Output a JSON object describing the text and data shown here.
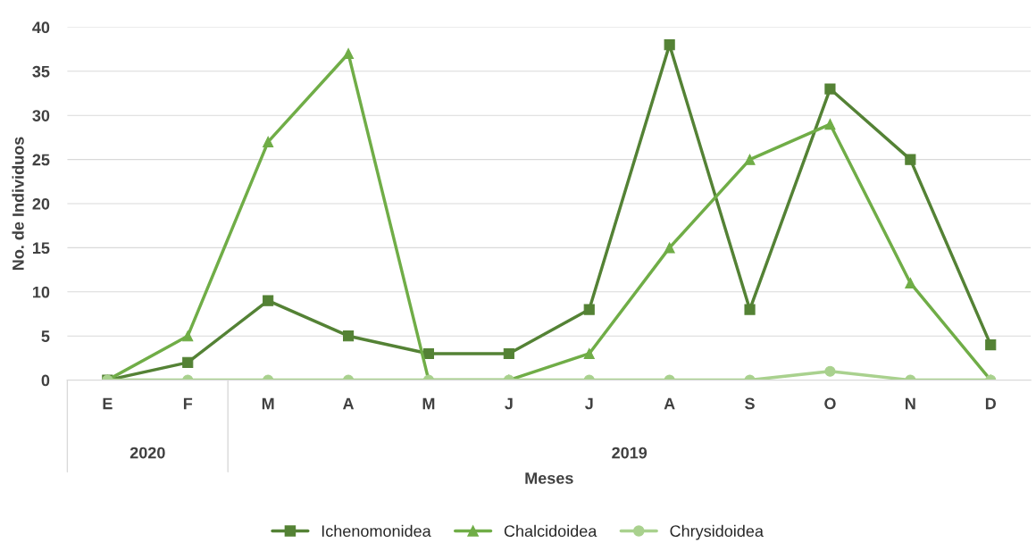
{
  "chart_data": {
    "type": "line",
    "xlabel": "Meses",
    "ylabel": "No. de Individuos",
    "categories": [
      "E",
      "F",
      "M",
      "A",
      "M",
      "J",
      "J",
      "A",
      "S",
      "O",
      "N",
      "D"
    ],
    "series": [
      {
        "name": "Ichenomonidea",
        "color": "#548235",
        "marker": "square",
        "values": [
          0,
          2,
          9,
          5,
          3,
          3,
          8,
          38,
          8,
          33,
          25,
          4
        ]
      },
      {
        "name": "Chalcidoidea",
        "color": "#70ad47",
        "marker": "triangle",
        "values": [
          0,
          5,
          27,
          37,
          0,
          0,
          3,
          15,
          25,
          29,
          11,
          0
        ]
      },
      {
        "name": "Chrysidoidea",
        "color": "#a9d18e",
        "marker": "circle",
        "values": [
          0,
          0,
          0,
          0,
          0,
          0,
          0,
          0,
          0,
          1,
          0,
          0
        ]
      }
    ],
    "ylim": [
      0,
      40
    ],
    "yticks": [
      0,
      5,
      10,
      15,
      20,
      25,
      30,
      35,
      40
    ],
    "grid": "y",
    "legend": "bottom",
    "annotations": [
      "2020",
      "2019"
    ]
  }
}
